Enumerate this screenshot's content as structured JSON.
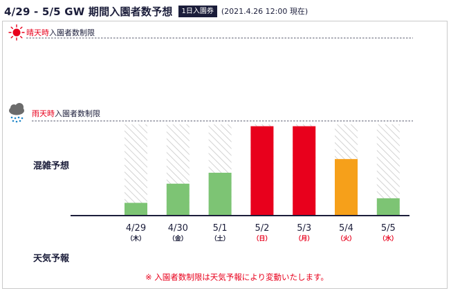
{
  "header": {
    "title": "4/29 - 5/5 GW 期間入園者数予想",
    "badge": "1日入園券",
    "as_of": "(2021.4.26 12:00 現在)"
  },
  "limits": {
    "sunny": {
      "accent": "晴天時",
      "rest": "入園者数制限",
      "color": "#e8001c",
      "icon": "sun-icon"
    },
    "rainy": {
      "accent": "雨天時",
      "rest": "入園者数制限",
      "color": "#e8001c",
      "icon": "rain-cloud-icon"
    }
  },
  "row_labels": {
    "forecast": "混雑予想",
    "weather": "天気予報"
  },
  "note": "※ 入園者数制限は天気予報により変動いたします。",
  "colors": {
    "green": "#7dc474",
    "red": "#e8001c",
    "orange": "#f6a01a",
    "hatch": "#c8c8c8",
    "navy": "#1b1d3a"
  },
  "chart_data": {
    "type": "bar",
    "title": "",
    "xlabel": "",
    "ylabel": "混雑予想",
    "ylim": [
      0,
      100
    ],
    "reference_line": 100,
    "categories": [
      "4/29",
      "4/30",
      "5/1",
      "5/2",
      "5/3",
      "5/4",
      "5/5"
    ],
    "weekdays": [
      "木",
      "金",
      "土",
      "日",
      "月",
      "火",
      "水"
    ],
    "weekday_colors": [
      "#1b1d3a",
      "#1b1d3a",
      "#1b1d3a",
      "#e8001c",
      "#e8001c",
      "#e8001c",
      "#e8001c"
    ],
    "values": [
      14,
      35,
      47,
      98,
      98,
      62,
      19
    ],
    "bar_colors": [
      "#7dc474",
      "#7dc474",
      "#7dc474",
      "#e8001c",
      "#e8001c",
      "#f6a01a",
      "#7dc474"
    ]
  }
}
